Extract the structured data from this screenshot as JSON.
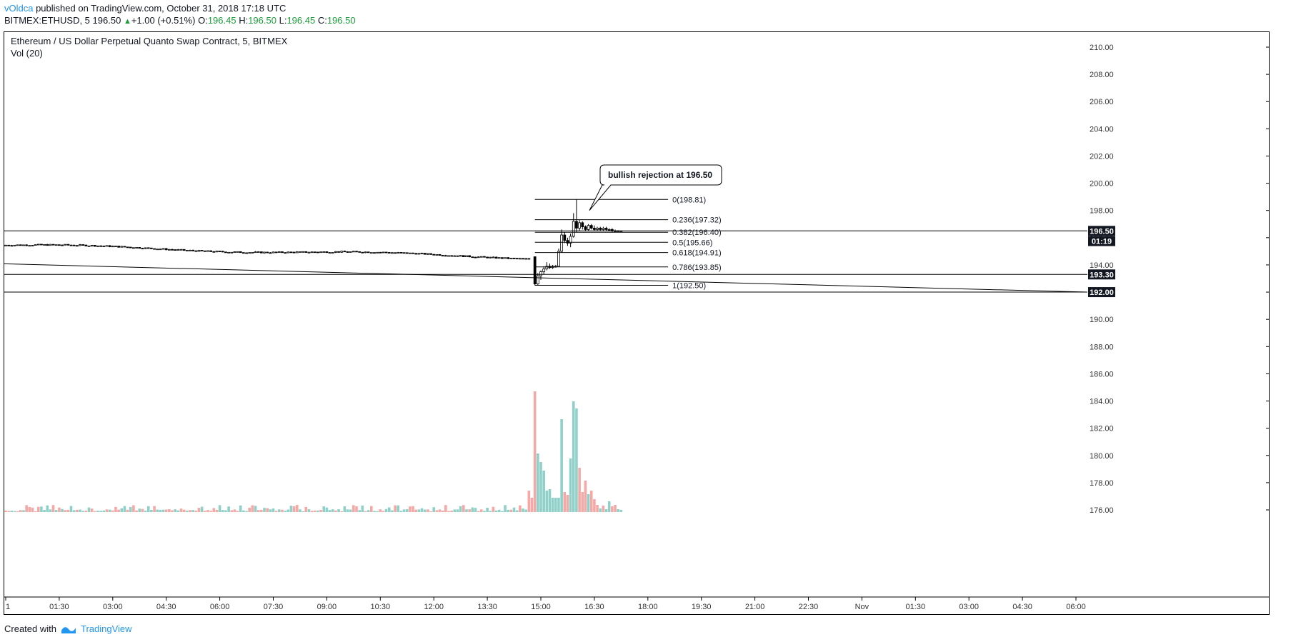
{
  "header": {
    "user": "vOldca",
    "published": " published on TradingView.com, October 31, 2018 17:18 UTC",
    "symbol": "BITMEX:ETHUSD, 5",
    "price": "196.50",
    "up_arrow": "▲",
    "change": "+1.00 (+0.51%)",
    "o_label": "O:",
    "o_val": "196.45",
    "h_label": "H:",
    "h_val": "196.50",
    "l_label": "L:",
    "l_val": "196.45",
    "c_label": "C:",
    "c_val": "196.50"
  },
  "legend": {
    "title": "Ethereum / US Dollar Perpetual Quanto Swap Contract, 5, BITMEX",
    "vol": "Vol (20)"
  },
  "footer": {
    "created": "Created with",
    "brand": "TradingView"
  },
  "colors": {
    "bull_volume": "#8fd1c9",
    "bear_volume": "#f4a9a6",
    "brand": "#2196f3",
    "up_text": "#1c9e3a"
  },
  "chart_data": {
    "type": "candlestick",
    "y_ticks": [
      "210.00",
      "208.00",
      "206.00",
      "204.00",
      "202.00",
      "200.00",
      "198.00",
      "196.00",
      "194.00",
      "192.00",
      "190.00",
      "188.00",
      "186.00",
      "184.00",
      "182.00",
      "180.00",
      "178.00",
      "176.00"
    ],
    "ylim": [
      175.6,
      211.4
    ],
    "x_ticks": [
      "1",
      "01:30",
      "03:00",
      "04:30",
      "06:00",
      "07:30",
      "09:00",
      "10:30",
      "12:00",
      "13:30",
      "15:00",
      "16:30",
      "18:00",
      "19:30",
      "21:00",
      "22:30",
      "Nov",
      "01:30",
      "03:00",
      "04:30",
      "06:00"
    ],
    "price_labels": [
      {
        "value": 196.5,
        "label": "196.50"
      },
      {
        "value": 195.75,
        "label": "01:19"
      },
      {
        "value": 193.3,
        "label": "193.30"
      },
      {
        "value": 192.0,
        "label": "192.00"
      }
    ],
    "horizontal_lines": [
      196.5,
      193.3,
      192.0
    ],
    "trendline": {
      "from": {
        "time": "00:00",
        "price": 194.08
      },
      "to": {
        "time": "06:00 (Nov 1)",
        "price": 192.0
      }
    },
    "fibonacci": {
      "start_time": "14:50",
      "end_time": "18:10",
      "levels": [
        {
          "ratio": "0",
          "price": 198.81,
          "label": "0(198.81)"
        },
        {
          "ratio": "0.236",
          "price": 197.32,
          "label": "0.236(197.32)"
        },
        {
          "ratio": "0.382",
          "price": 196.4,
          "label": "0.382(196.40)"
        },
        {
          "ratio": "0.5",
          "price": 195.66,
          "label": "0.5(195.66)"
        },
        {
          "ratio": "0.618",
          "price": 194.91,
          "label": "0.618(194.91)"
        },
        {
          "ratio": "0.786",
          "price": 193.85,
          "label": "0.786(193.85)"
        },
        {
          "ratio": "1",
          "price": 192.5,
          "label": "1(192.50)"
        }
      ]
    },
    "annotation": {
      "text": "bullish rejection at 196.50",
      "target_time": "16:05",
      "target_price": 198.0
    },
    "candles": [
      {
        "t": "00:00-14:45",
        "o": 195.4,
        "h": 195.6,
        "l": 194.4,
        "c": 194.6,
        "note": "flat range ~194.5-195.5"
      },
      {
        "t": "14:50",
        "o": 194.6,
        "h": 194.6,
        "l": 192.5,
        "c": 192.6
      },
      {
        "t": "15:00-15:30",
        "o": 192.8,
        "h": 194.2,
        "l": 192.5,
        "c": 193.9
      },
      {
        "t": "15:35-15:45",
        "o": 193.9,
        "h": 196.6,
        "l": 193.9,
        "c": 196.0
      },
      {
        "t": "15:50-16:10",
        "o": 195.4,
        "h": 198.81,
        "l": 195.3,
        "c": 196.6
      },
      {
        "t": "16:15-17:15",
        "o": 196.6,
        "h": 196.9,
        "l": 196.4,
        "c": 196.5
      }
    ],
    "volume_peaks": [
      {
        "time": "14:50",
        "direction": "bear",
        "relative": 1.0
      },
      {
        "time": "15:35",
        "direction": "bull",
        "relative": 0.75
      },
      {
        "time": "15:55",
        "direction": "bull",
        "relative": 0.88
      }
    ]
  }
}
